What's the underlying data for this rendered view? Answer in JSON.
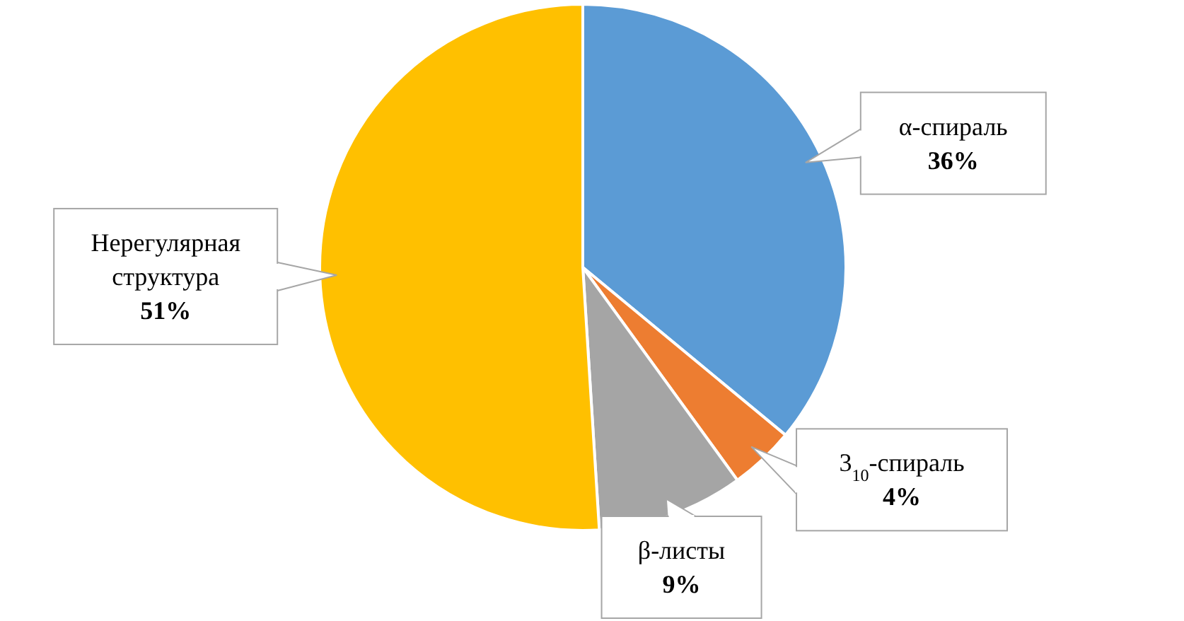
{
  "chart_data": {
    "type": "pie",
    "categories": [
      "α-спираль",
      "3$_{10}$-спираль",
      "β-листы",
      "Нерегулярная структура"
    ],
    "values": [
      36,
      4,
      9,
      51
    ],
    "colors": [
      "#5b9bd5",
      "#ed7d31",
      "#a5a5a5",
      "#ffc000"
    ],
    "value_labels": [
      "36%",
      "4%",
      "9%",
      "51%"
    ]
  }
}
